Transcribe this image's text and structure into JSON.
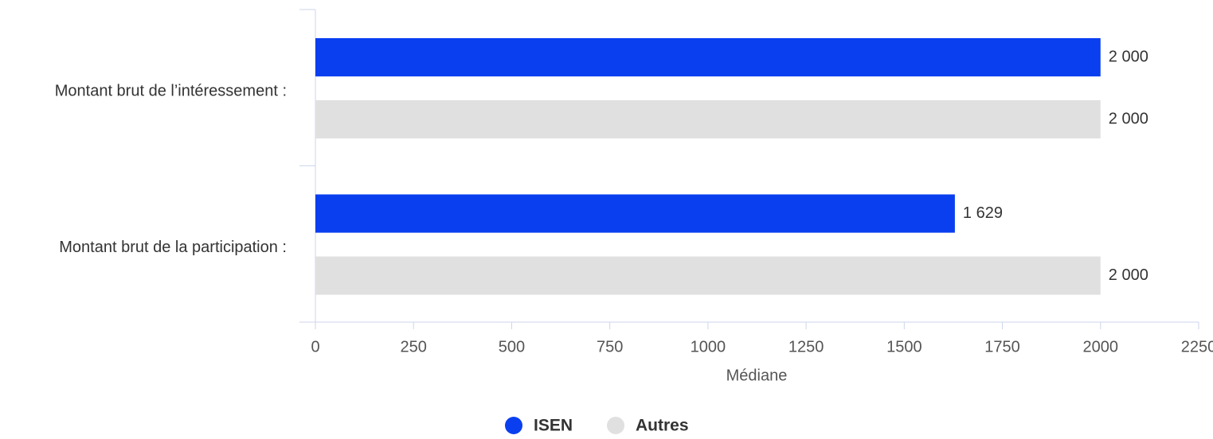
{
  "chart_data": {
    "type": "barh",
    "categories": [
      "Montant brut de l’intéressement :",
      "Montant brut de la participation :"
    ],
    "series": [
      {
        "name": "ISEN",
        "color": "#0a3ff0",
        "values": [
          2000,
          1629
        ],
        "value_labels": [
          "2 000",
          "1 629"
        ]
      },
      {
        "name": "Autres",
        "color": "#e0e0e0",
        "values": [
          2000,
          2000
        ],
        "value_labels": [
          "2 000",
          "2 000"
        ]
      }
    ],
    "xlabel": "Médiane",
    "xlim": [
      0,
      2250
    ],
    "xticks": [
      0,
      250,
      500,
      750,
      1000,
      1250,
      1500,
      1750,
      2000,
      2250
    ],
    "legend": "bottom"
  }
}
